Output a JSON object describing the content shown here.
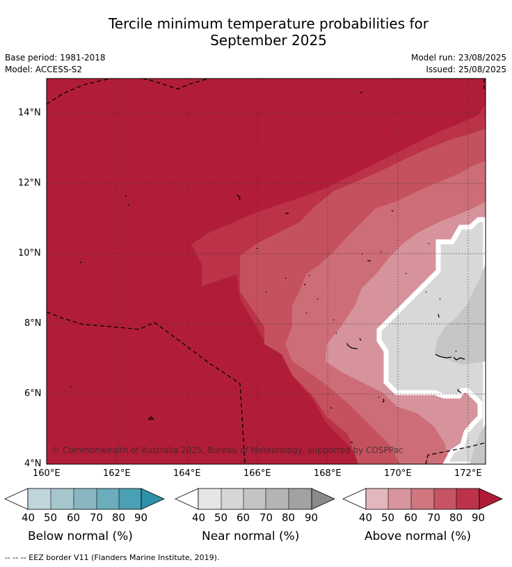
{
  "title_line1": "Tercile minimum temperature probabilities for",
  "title_line2": "September 2025",
  "base_period": "Base period: 1981-2018",
  "model": "Model: ACCESS-S2",
  "model_run": "Model run: 23/08/2025",
  "issued": "Issued: 25/08/2025",
  "copyright": "© Commonwealth of Australia 2025, Bureau of Meteorology, supported by COSPPac",
  "footnote": "--  --  -- EEZ border V11 (Flanders Marine Institute, 2019).",
  "map": {
    "lon_ticks": [
      "160°E",
      "162°E",
      "164°E",
      "166°E",
      "168°E",
      "170°E",
      "172°E"
    ],
    "lat_ticks": [
      "14°N",
      "12°N",
      "10°N",
      "8°N",
      "6°N",
      "4°N"
    ]
  },
  "colorbars": [
    {
      "label": "Below normal (%)",
      "ticks": [
        "40",
        "50",
        "60",
        "70",
        "80",
        "90"
      ],
      "colors": [
        "#c0d5dc",
        "#a5c6cd",
        "#89b6c1",
        "#6cadbd",
        "#4aa0b4",
        "#2e91a8"
      ]
    },
    {
      "label": "Near normal (%)",
      "ticks": [
        "40",
        "50",
        "60",
        "70",
        "80",
        "90"
      ],
      "colors": [
        "#e6e6e6",
        "#d6d6d6",
        "#c4c4c4",
        "#b4b4b4",
        "#a2a2a2",
        "#8a8a8a"
      ]
    },
    {
      "label": "Above normal (%)",
      "ticks": [
        "40",
        "50",
        "60",
        "70",
        "80",
        "90"
      ],
      "colors": [
        "#e4b7bd",
        "#d8959d",
        "#cf767f",
        "#c65463",
        "#bb3249",
        "#b01c37"
      ]
    }
  ],
  "colors": {
    "above_90": "#b11d38",
    "above_80": "#bb3249",
    "above_70": "#c5515f",
    "above_60": "#cd6d78",
    "above_50": "#d6939b",
    "near_50": "#d8d8d8",
    "near_60": "#c6c6c6"
  }
}
